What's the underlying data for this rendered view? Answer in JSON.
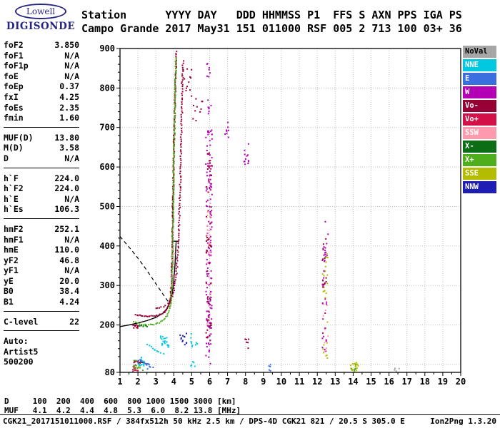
{
  "logo": {
    "brand_top": "Lowell",
    "brand_bottom": "DIGISONDE"
  },
  "header": {
    "line1": "Station      YYYY DAY   DDD HHMMSS P1  FFS S AXN PPS IGA PS",
    "line2": "Campo Grande 2017 May31 151 011000 RSF 005 2 713 100 03+ 36"
  },
  "parameters": {
    "groups": [
      {
        "rows": [
          [
            "foF2",
            "3.850"
          ],
          [
            "foF1",
            "N/A"
          ],
          [
            "foF1p",
            "N/A"
          ],
          [
            "foE",
            "N/A"
          ],
          [
            "foEp",
            "0.37"
          ],
          [
            "fxI",
            "4.25"
          ],
          [
            "foEs",
            "2.35"
          ],
          [
            "fmin",
            "1.60"
          ]
        ]
      },
      {
        "rows": [
          [
            "MUF(D)",
            "13.80"
          ],
          [
            "M(D)",
            "3.58"
          ],
          [
            "D",
            "N/A"
          ]
        ]
      },
      {
        "rows": [
          [
            "h`F",
            "224.0"
          ],
          [
            "h`F2",
            "224.0"
          ],
          [
            "h`E",
            "N/A"
          ],
          [
            "h`Es",
            "106.3"
          ]
        ]
      },
      {
        "rows": [
          [
            "hmF2",
            "252.1"
          ],
          [
            "hmF1",
            "N/A"
          ],
          [
            "hmE",
            "110.0"
          ],
          [
            "yF2",
            "46.8"
          ],
          [
            "yF1",
            "N/A"
          ],
          [
            "yE",
            "20.0"
          ],
          [
            "B0",
            "38.4"
          ],
          [
            "B1",
            "4.24"
          ]
        ]
      },
      {
        "rows": [
          [
            "C-level",
            "22"
          ]
        ]
      }
    ],
    "auto_label": "Auto:",
    "auto_lines": [
      "Artist5",
      "500200"
    ]
  },
  "range_table": {
    "rows": [
      {
        "label": "D",
        "values": [
          "100",
          "200",
          "400",
          "600",
          "800",
          "1000",
          "1500",
          "3000"
        ],
        "unit": "[km]"
      },
      {
        "label": "MUF",
        "values": [
          "4.1",
          "4.2",
          "4.4",
          "4.8",
          "5.3",
          "6.0",
          "8.2",
          "13.8"
        ],
        "unit": "[MHz]"
      }
    ]
  },
  "statusbar": {
    "left": "CGK21_2017151011000.RSF / 384fx512h 50 kHz 2.5 km / DPS-4D CGK21 821 / 20.5 S 305.0 E",
    "right": "Ion2Png 1.3.20"
  },
  "chart_data": {
    "type": "scatter",
    "title": "Digisonde ionogram, Campo Grande, 2017 May31 151 011000",
    "x_axis": {
      "label": "[MHz]",
      "min": 1,
      "max": 20,
      "ticks": [
        1,
        2,
        3,
        4,
        5,
        6,
        7,
        8,
        9,
        10,
        11,
        12,
        13,
        14,
        15,
        16,
        17,
        18,
        19,
        20
      ]
    },
    "y_axis": {
      "label": "[km]",
      "min": 80,
      "max": 900,
      "ticks": [
        900,
        800,
        700,
        600,
        500,
        400,
        300,
        200,
        80
      ]
    },
    "grid_x": [
      2,
      3,
      4,
      5,
      6,
      7,
      8,
      9,
      10,
      11,
      12,
      13,
      14,
      15,
      16,
      17,
      18,
      19
    ],
    "grid_y": [
      100,
      200,
      300,
      400,
      500,
      600,
      700,
      800
    ],
    "legend": [
      {
        "label": "NoVal",
        "color": "#a6a6a6",
        "text": "#000000"
      },
      {
        "label": "NNE",
        "color": "#00c8e0",
        "text": "#ffffff"
      },
      {
        "label": "E",
        "color": "#3a6fe0",
        "text": "#ffffff"
      },
      {
        "label": "W",
        "color": "#b400b4",
        "text": "#ffffff"
      },
      {
        "label": "Vo-",
        "color": "#960035",
        "text": "#ffffff"
      },
      {
        "label": "Vo+",
        "color": "#d41048",
        "text": "#ffffff"
      },
      {
        "label": "SSW",
        "color": "#ff9aae",
        "text": "#ffffff"
      },
      {
        "label": "X-",
        "color": "#0c6e14",
        "text": "#ffffff"
      },
      {
        "label": "X+",
        "color": "#4fae1c",
        "text": "#ffffff"
      },
      {
        "label": "SSE",
        "color": "#b4bc00",
        "text": "#ffffff"
      },
      {
        "label": "NNW",
        "color": "#1e1eb4",
        "text": "#ffffff"
      }
    ],
    "profile": {
      "bottomside": [
        [
          1.0,
          196
        ],
        [
          1.5,
          200
        ],
        [
          2.0,
          205
        ],
        [
          2.5,
          211
        ],
        [
          3.0,
          219
        ],
        [
          3.4,
          230
        ],
        [
          3.6,
          241
        ],
        [
          3.8,
          258
        ],
        [
          3.92,
          282
        ],
        [
          4.0,
          312
        ],
        [
          4.07,
          355
        ],
        [
          4.11,
          395
        ],
        [
          4.13,
          410
        ]
      ],
      "cap": [
        [
          3.95,
          412
        ],
        [
          4.3,
          412
        ]
      ],
      "topside_dashed": [
        [
          1.0,
          424
        ],
        [
          1.3,
          408
        ],
        [
          1.6,
          392
        ],
        [
          1.9,
          375
        ],
        [
          2.2,
          357
        ],
        [
          2.5,
          338
        ],
        [
          2.8,
          318
        ],
        [
          3.1,
          298
        ],
        [
          3.35,
          281
        ],
        [
          3.55,
          268
        ],
        [
          3.7,
          258
        ]
      ]
    },
    "clusters": [
      {
        "name": "F-trace O-mode",
        "color": "Vo-",
        "step": 2,
        "jitter": 0.8,
        "path": [
          [
            1.88,
            226
          ],
          [
            2.2,
            223
          ],
          [
            2.6,
            222
          ],
          [
            3.0,
            223
          ],
          [
            3.3,
            227
          ],
          [
            3.5,
            233
          ],
          [
            3.65,
            242
          ],
          [
            3.76,
            255
          ],
          [
            3.83,
            273
          ],
          [
            3.87,
            300
          ],
          [
            3.9,
            340
          ],
          [
            3.92,
            390
          ],
          [
            3.94,
            450
          ],
          [
            3.96,
            520
          ],
          [
            3.99,
            600
          ],
          [
            4.02,
            680
          ],
          [
            4.06,
            760
          ],
          [
            4.11,
            845
          ],
          [
            4.15,
            895
          ]
        ]
      },
      {
        "name": "F-trace X-mode upper",
        "color": "Vo-",
        "step": 3,
        "jitter": 0.9,
        "path": [
          [
            3.0,
            241
          ],
          [
            3.3,
            244
          ],
          [
            3.55,
            250
          ],
          [
            3.75,
            259
          ],
          [
            3.9,
            273
          ],
          [
            4.02,
            293
          ],
          [
            4.12,
            321
          ],
          [
            4.2,
            362
          ],
          [
            4.26,
            416
          ],
          [
            4.31,
            482
          ],
          [
            4.36,
            562
          ],
          [
            4.41,
            660
          ],
          [
            4.46,
            770
          ],
          [
            4.52,
            875
          ]
        ]
      },
      {
        "name": "F-trace green",
        "color": "X+",
        "step": 2.5,
        "jitter": 0.8,
        "path": [
          [
            1.78,
            207
          ],
          [
            2.1,
            203
          ],
          [
            2.5,
            200
          ],
          [
            2.9,
            201
          ],
          [
            3.2,
            206
          ],
          [
            3.45,
            213
          ],
          [
            3.62,
            223
          ],
          [
            3.75,
            237
          ],
          [
            3.83,
            257
          ],
          [
            3.88,
            285
          ],
          [
            3.91,
            325
          ],
          [
            3.93,
            375
          ],
          [
            3.95,
            440
          ],
          [
            3.97,
            515
          ],
          [
            4.0,
            600
          ],
          [
            4.03,
            690
          ],
          [
            4.07,
            790
          ],
          [
            4.12,
            882
          ]
        ]
      },
      {
        "name": "dark green flat",
        "color": "X-",
        "step": 3,
        "jitter": 0.8,
        "path": [
          [
            2.0,
            198
          ],
          [
            2.3,
            197
          ],
          [
            2.6,
            197
          ]
        ]
      },
      {
        "name": "red left low",
        "color": "Vo-",
        "box": [
          1.7,
          2.0,
          192,
          201
        ],
        "n": 12
      },
      {
        "name": "Es trace red",
        "color": "Vo-",
        "box": [
          1.7,
          2.38,
          103,
          110
        ],
        "n": 16
      },
      {
        "name": "Es red low",
        "color": "Vo+",
        "box": [
          1.72,
          2.0,
          83,
          99
        ],
        "n": 10
      },
      {
        "name": "Es green",
        "color": "X+",
        "box": [
          1.76,
          2.3,
          82,
          112
        ],
        "n": 16
      },
      {
        "name": "Es cyan arc",
        "color": "NNE",
        "step": 3,
        "jitter": 1.2,
        "path": [
          [
            2.55,
            152
          ],
          [
            2.8,
            141
          ],
          [
            3.05,
            133
          ],
          [
            3.3,
            128
          ],
          [
            3.52,
            126
          ]
        ]
      },
      {
        "name": "Es cyan blob",
        "color": "NNE",
        "box": [
          3.25,
          3.72,
          143,
          172
        ],
        "n": 22
      },
      {
        "name": "Es cyan left",
        "color": "NNE",
        "box": [
          2.05,
          2.35,
          96,
          118
        ],
        "n": 12
      },
      {
        "name": "Es blue",
        "color": "E",
        "box": [
          2.4,
          2.85,
          86,
          104
        ],
        "n": 10
      },
      {
        "name": "Es blue 2",
        "color": "E",
        "box": [
          2.0,
          2.2,
          100,
          112
        ],
        "n": 6
      },
      {
        "name": "navy mid",
        "color": "NNW",
        "box": [
          4.35,
          4.75,
          150,
          182
        ],
        "n": 12
      },
      {
        "name": "cyan 5MHz",
        "color": "NNE",
        "box": [
          4.95,
          5.35,
          88,
          180
        ],
        "n": 14
      },
      {
        "name": "pink near rise",
        "color": "SSW",
        "box": [
          3.85,
          4.1,
          300,
          420
        ],
        "n": 8
      },
      {
        "name": "RFI 6MHz magenta",
        "color": "W",
        "box": [
          5.78,
          6.14,
          95,
          700
        ],
        "n": 150
      },
      {
        "name": "RFI 6MHz dark",
        "color": "Vo-",
        "box": [
          5.8,
          6.1,
          160,
          640
        ],
        "n": 55
      },
      {
        "name": "RFI 6MHz pink",
        "color": "SSW",
        "box": [
          5.84,
          6.1,
          200,
          520
        ],
        "n": 28
      },
      {
        "name": "RFI 6MHz top",
        "color": "W",
        "box": [
          5.85,
          6.08,
          700,
          865
        ],
        "n": 14
      },
      {
        "name": "second hop F",
        "color": "Vo-",
        "box": [
          4.4,
          5.05,
          755,
          880
        ],
        "n": 14
      },
      {
        "name": "second hop F b",
        "color": "Vo-",
        "box": [
          5.05,
          5.6,
          715,
          780
        ],
        "n": 10
      },
      {
        "name": "7MHz cluster",
        "color": "W",
        "box": [
          6.85,
          7.08,
          675,
          715
        ],
        "n": 8
      },
      {
        "name": "8MHz high",
        "color": "W",
        "box": [
          7.92,
          8.2,
          598,
          662
        ],
        "n": 12
      },
      {
        "name": "8MHz low",
        "color": "Vo-",
        "box": [
          7.95,
          8.18,
          138,
          168
        ],
        "n": 6
      },
      {
        "name": "9MHz low",
        "color": "E",
        "box": [
          9.2,
          9.48,
          82,
          100
        ],
        "n": 5
      },
      {
        "name": "12.4MHz magenta",
        "color": "W",
        "box": [
          12.28,
          12.62,
          100,
          470
        ],
        "n": 40
      },
      {
        "name": "12.4MHz yellow",
        "color": "SSE",
        "box": [
          12.3,
          12.6,
          108,
          455
        ],
        "n": 24
      },
      {
        "name": "12.4MHz dark",
        "color": "Vo-",
        "box": [
          12.3,
          12.52,
          295,
          420
        ],
        "n": 12
      },
      {
        "name": "12.4MHz pink",
        "color": "SSW",
        "box": [
          12.34,
          12.6,
          118,
          255
        ],
        "n": 10
      },
      {
        "name": "14MHz yellow",
        "color": "SSE",
        "box": [
          13.85,
          14.28,
          82,
          108
        ],
        "n": 18
      },
      {
        "name": "14MHz green",
        "color": "X+",
        "box": [
          13.9,
          14.2,
          83,
          100
        ],
        "n": 7
      },
      {
        "name": "16MHz gray",
        "color": "NoVal",
        "box": [
          16.3,
          16.6,
          82,
          94
        ],
        "n": 4
      }
    ]
  }
}
